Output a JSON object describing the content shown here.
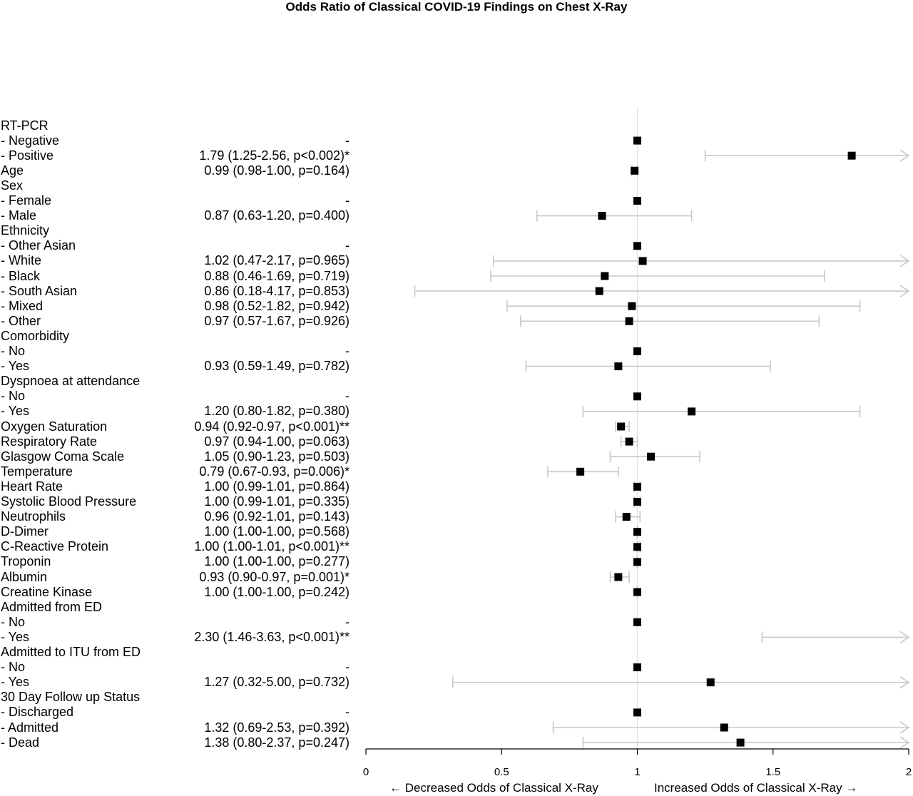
{
  "chart_data": {
    "type": "forest",
    "title": "Odds Ratio of Classical COVID-19 Findings on Chest X-Ray",
    "xlim": [
      0,
      2
    ],
    "xticks": [
      0,
      0.5,
      1,
      1.5,
      2
    ],
    "xtick_labels": [
      "0",
      "0.5",
      "1",
      "1.5",
      "2"
    ],
    "reference_line": 1,
    "xlabel_left": "← Decreased Odds of Classical X-Ray",
    "xlabel_right": "Increased Odds of Classical X-Ray →",
    "colors": {
      "point": "#000000",
      "ci": "#c8c8c8",
      "reference": "#e0e0e0",
      "axis": "#000000"
    },
    "rows": [
      {
        "label": "RT-PCR",
        "stat": "",
        "or": null,
        "lo": null,
        "hi": null
      },
      {
        "label": "- Negative",
        "stat": "-",
        "or": 1.0,
        "lo": null,
        "hi": null
      },
      {
        "label": "- Positive",
        "stat": "1.79 (1.25-2.56, p<0.002)*",
        "or": 1.79,
        "lo": 1.25,
        "hi": 2.56
      },
      {
        "label": "Age",
        "stat": "0.99 (0.98-1.00, p=0.164)",
        "or": 0.99,
        "lo": 0.98,
        "hi": 1.0
      },
      {
        "label": "Sex",
        "stat": "",
        "or": null,
        "lo": null,
        "hi": null
      },
      {
        "label": "- Female",
        "stat": "-",
        "or": 1.0,
        "lo": null,
        "hi": null
      },
      {
        "label": "- Male",
        "stat": "0.87 (0.63-1.20, p=0.400)",
        "or": 0.87,
        "lo": 0.63,
        "hi": 1.2
      },
      {
        "label": "Ethnicity",
        "stat": "",
        "or": null,
        "lo": null,
        "hi": null
      },
      {
        "label": "- Other Asian",
        "stat": "-",
        "or": 1.0,
        "lo": null,
        "hi": null
      },
      {
        "label": "- White",
        "stat": "1.02 (0.47-2.17, p=0.965)",
        "or": 1.02,
        "lo": 0.47,
        "hi": 2.17
      },
      {
        "label": "- Black",
        "stat": "0.88 (0.46-1.69, p=0.719)",
        "or": 0.88,
        "lo": 0.46,
        "hi": 1.69
      },
      {
        "label": "- South Asian",
        "stat": "0.86 (0.18-4.17, p=0.853)",
        "or": 0.86,
        "lo": 0.18,
        "hi": 4.17
      },
      {
        "label": "- Mixed",
        "stat": "0.98 (0.52-1.82, p=0.942)",
        "or": 0.98,
        "lo": 0.52,
        "hi": 1.82
      },
      {
        "label": "- Other",
        "stat": "0.97 (0.57-1.67, p=0.926)",
        "or": 0.97,
        "lo": 0.57,
        "hi": 1.67
      },
      {
        "label": "Comorbidity",
        "stat": "",
        "or": null,
        "lo": null,
        "hi": null
      },
      {
        "label": "- No",
        "stat": "-",
        "or": 1.0,
        "lo": null,
        "hi": null
      },
      {
        "label": "- Yes",
        "stat": "0.93 (0.59-1.49, p=0.782)",
        "or": 0.93,
        "lo": 0.59,
        "hi": 1.49
      },
      {
        "label": "Dyspnoea at attendance",
        "stat": "",
        "or": null,
        "lo": null,
        "hi": null
      },
      {
        "label": "- No",
        "stat": "-",
        "or": 1.0,
        "lo": null,
        "hi": null
      },
      {
        "label": "- Yes",
        "stat": "1.20 (0.80-1.82, p=0.380)",
        "or": 1.2,
        "lo": 0.8,
        "hi": 1.82
      },
      {
        "label": "Oxygen Saturation",
        "stat": "0.94 (0.92-0.97, p<0.001)**",
        "or": 0.94,
        "lo": 0.92,
        "hi": 0.97
      },
      {
        "label": "Respiratory Rate",
        "stat": "0.97 (0.94-1.00, p=0.063)",
        "or": 0.97,
        "lo": 0.94,
        "hi": 1.0
      },
      {
        "label": "Glasgow Coma Scale",
        "stat": "1.05 (0.90-1.23, p=0.503)",
        "or": 1.05,
        "lo": 0.9,
        "hi": 1.23
      },
      {
        "label": "Temperature",
        "stat": "0.79 (0.67-0.93, p=0.006)*",
        "or": 0.79,
        "lo": 0.67,
        "hi": 0.93
      },
      {
        "label": "Heart Rate",
        "stat": "1.00 (0.99-1.01, p=0.864)",
        "or": 1.0,
        "lo": 0.99,
        "hi": 1.01
      },
      {
        "label": "Systolic Blood Pressure",
        "stat": "1.00 (0.99-1.01, p=0.335)",
        "or": 1.0,
        "lo": 0.99,
        "hi": 1.01
      },
      {
        "label": "Neutrophils",
        "stat": "0.96 (0.92-1.01, p=0.143)",
        "or": 0.96,
        "lo": 0.92,
        "hi": 1.01
      },
      {
        "label": "D-Dimer",
        "stat": "1.00 (1.00-1.00, p=0.568)",
        "or": 1.0,
        "lo": 1.0,
        "hi": 1.0
      },
      {
        "label": "C-Reactive Protein",
        "stat": "1.00 (1.00-1.01, p<0.001)**",
        "or": 1.0,
        "lo": 1.0,
        "hi": 1.01
      },
      {
        "label": "Troponin",
        "stat": "1.00 (1.00-1.00, p=0.277)",
        "or": 1.0,
        "lo": 1.0,
        "hi": 1.0
      },
      {
        "label": "Albumin",
        "stat": "0.93 (0.90-0.97, p=0.001)*",
        "or": 0.93,
        "lo": 0.9,
        "hi": 0.97
      },
      {
        "label": "Creatine Kinase",
        "stat": "1.00 (1.00-1.00, p=0.242)",
        "or": 1.0,
        "lo": 1.0,
        "hi": 1.0
      },
      {
        "label": "Admitted from ED",
        "stat": "",
        "or": null,
        "lo": null,
        "hi": null
      },
      {
        "label": "- No",
        "stat": "-",
        "or": 1.0,
        "lo": null,
        "hi": null
      },
      {
        "label": "- Yes",
        "stat": "2.30 (1.46-3.63, p<0.001)**",
        "or": 2.3,
        "lo": 1.46,
        "hi": 3.63
      },
      {
        "label": "Admitted to ITU from ED",
        "stat": "",
        "or": null,
        "lo": null,
        "hi": null
      },
      {
        "label": "- No",
        "stat": "-",
        "or": 1.0,
        "lo": null,
        "hi": null
      },
      {
        "label": "- Yes",
        "stat": "1.27 (0.32-5.00, p=0.732)",
        "or": 1.27,
        "lo": 0.32,
        "hi": 5.0
      },
      {
        "label": "30 Day Follow up Status",
        "stat": "",
        "or": null,
        "lo": null,
        "hi": null
      },
      {
        "label": "- Discharged",
        "stat": "-",
        "or": 1.0,
        "lo": null,
        "hi": null
      },
      {
        "label": "- Admitted",
        "stat": "1.32 (0.69-2.53, p=0.392)",
        "or": 1.32,
        "lo": 0.69,
        "hi": 2.53
      },
      {
        "label": "- Dead",
        "stat": "1.38 (0.80-2.37, p=0.247)",
        "or": 1.38,
        "lo": 0.8,
        "hi": 2.37
      }
    ]
  }
}
